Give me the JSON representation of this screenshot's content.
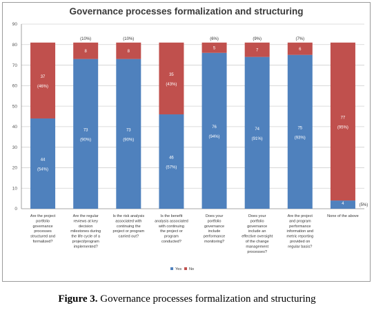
{
  "caption": {
    "label": "Figure 3.",
    "text": "Governance processes formalization and structuring"
  },
  "chart_data": {
    "type": "bar",
    "stacked": true,
    "title": "Governance processes formalization and structuring",
    "xlabel": "",
    "ylabel": "",
    "ylim": [
      0,
      90
    ],
    "yticks": [
      0,
      10,
      20,
      30,
      40,
      50,
      60,
      70,
      80,
      90
    ],
    "grid": true,
    "legend_position": "bottom",
    "categories": [
      [
        "Are the project",
        "portfolio",
        "governance",
        "processes",
        "structured and",
        "formalized?"
      ],
      [
        "Are the regular",
        "reviews at key",
        "decision",
        "milestones during",
        "the life cycle of a",
        "project/program",
        "implemented?"
      ],
      [
        "Is the risk analysis",
        "associated with",
        "continuing the",
        "project or program",
        "carried out?"
      ],
      [
        "Is the benefit",
        "analysis associated",
        "with continuing",
        "the project or",
        "program",
        "conducted?"
      ],
      [
        "Does your",
        "portfolio",
        "governance",
        "include",
        "performance",
        "monitoring?"
      ],
      [
        "Does your",
        "portfolio",
        "governance",
        "include an",
        "effective oversight",
        "of the change",
        "management",
        "processes?"
      ],
      [
        "Are the project",
        "and program",
        "performance",
        "information and",
        "metric reporting",
        "provided on",
        "regular basis?"
      ],
      [
        "None of the above"
      ]
    ],
    "series": [
      {
        "name": "Yes",
        "color": "#4f81bd",
        "values": [
          44,
          73,
          73,
          46,
          76,
          74,
          75,
          4
        ],
        "labels": [
          "44",
          "73",
          "73",
          "46",
          "76",
          "74",
          "75",
          "4"
        ],
        "percents": [
          "(54%)",
          "(90%)",
          "(90%)",
          "(57%)",
          "(94%)",
          "(91%)",
          "(93%)",
          "(5%)"
        ]
      },
      {
        "name": "No",
        "color": "#c0504d",
        "values": [
          37,
          8,
          8,
          35,
          5,
          7,
          6,
          77
        ],
        "labels": [
          "37",
          "8",
          "8",
          "35",
          "5",
          "7",
          "6",
          "77"
        ],
        "percents": [
          "(46%)",
          "(10%)",
          "(10%)",
          "(43%)",
          "(6%)",
          "(9%)",
          "(7%)",
          "(95%)"
        ]
      }
    ]
  }
}
